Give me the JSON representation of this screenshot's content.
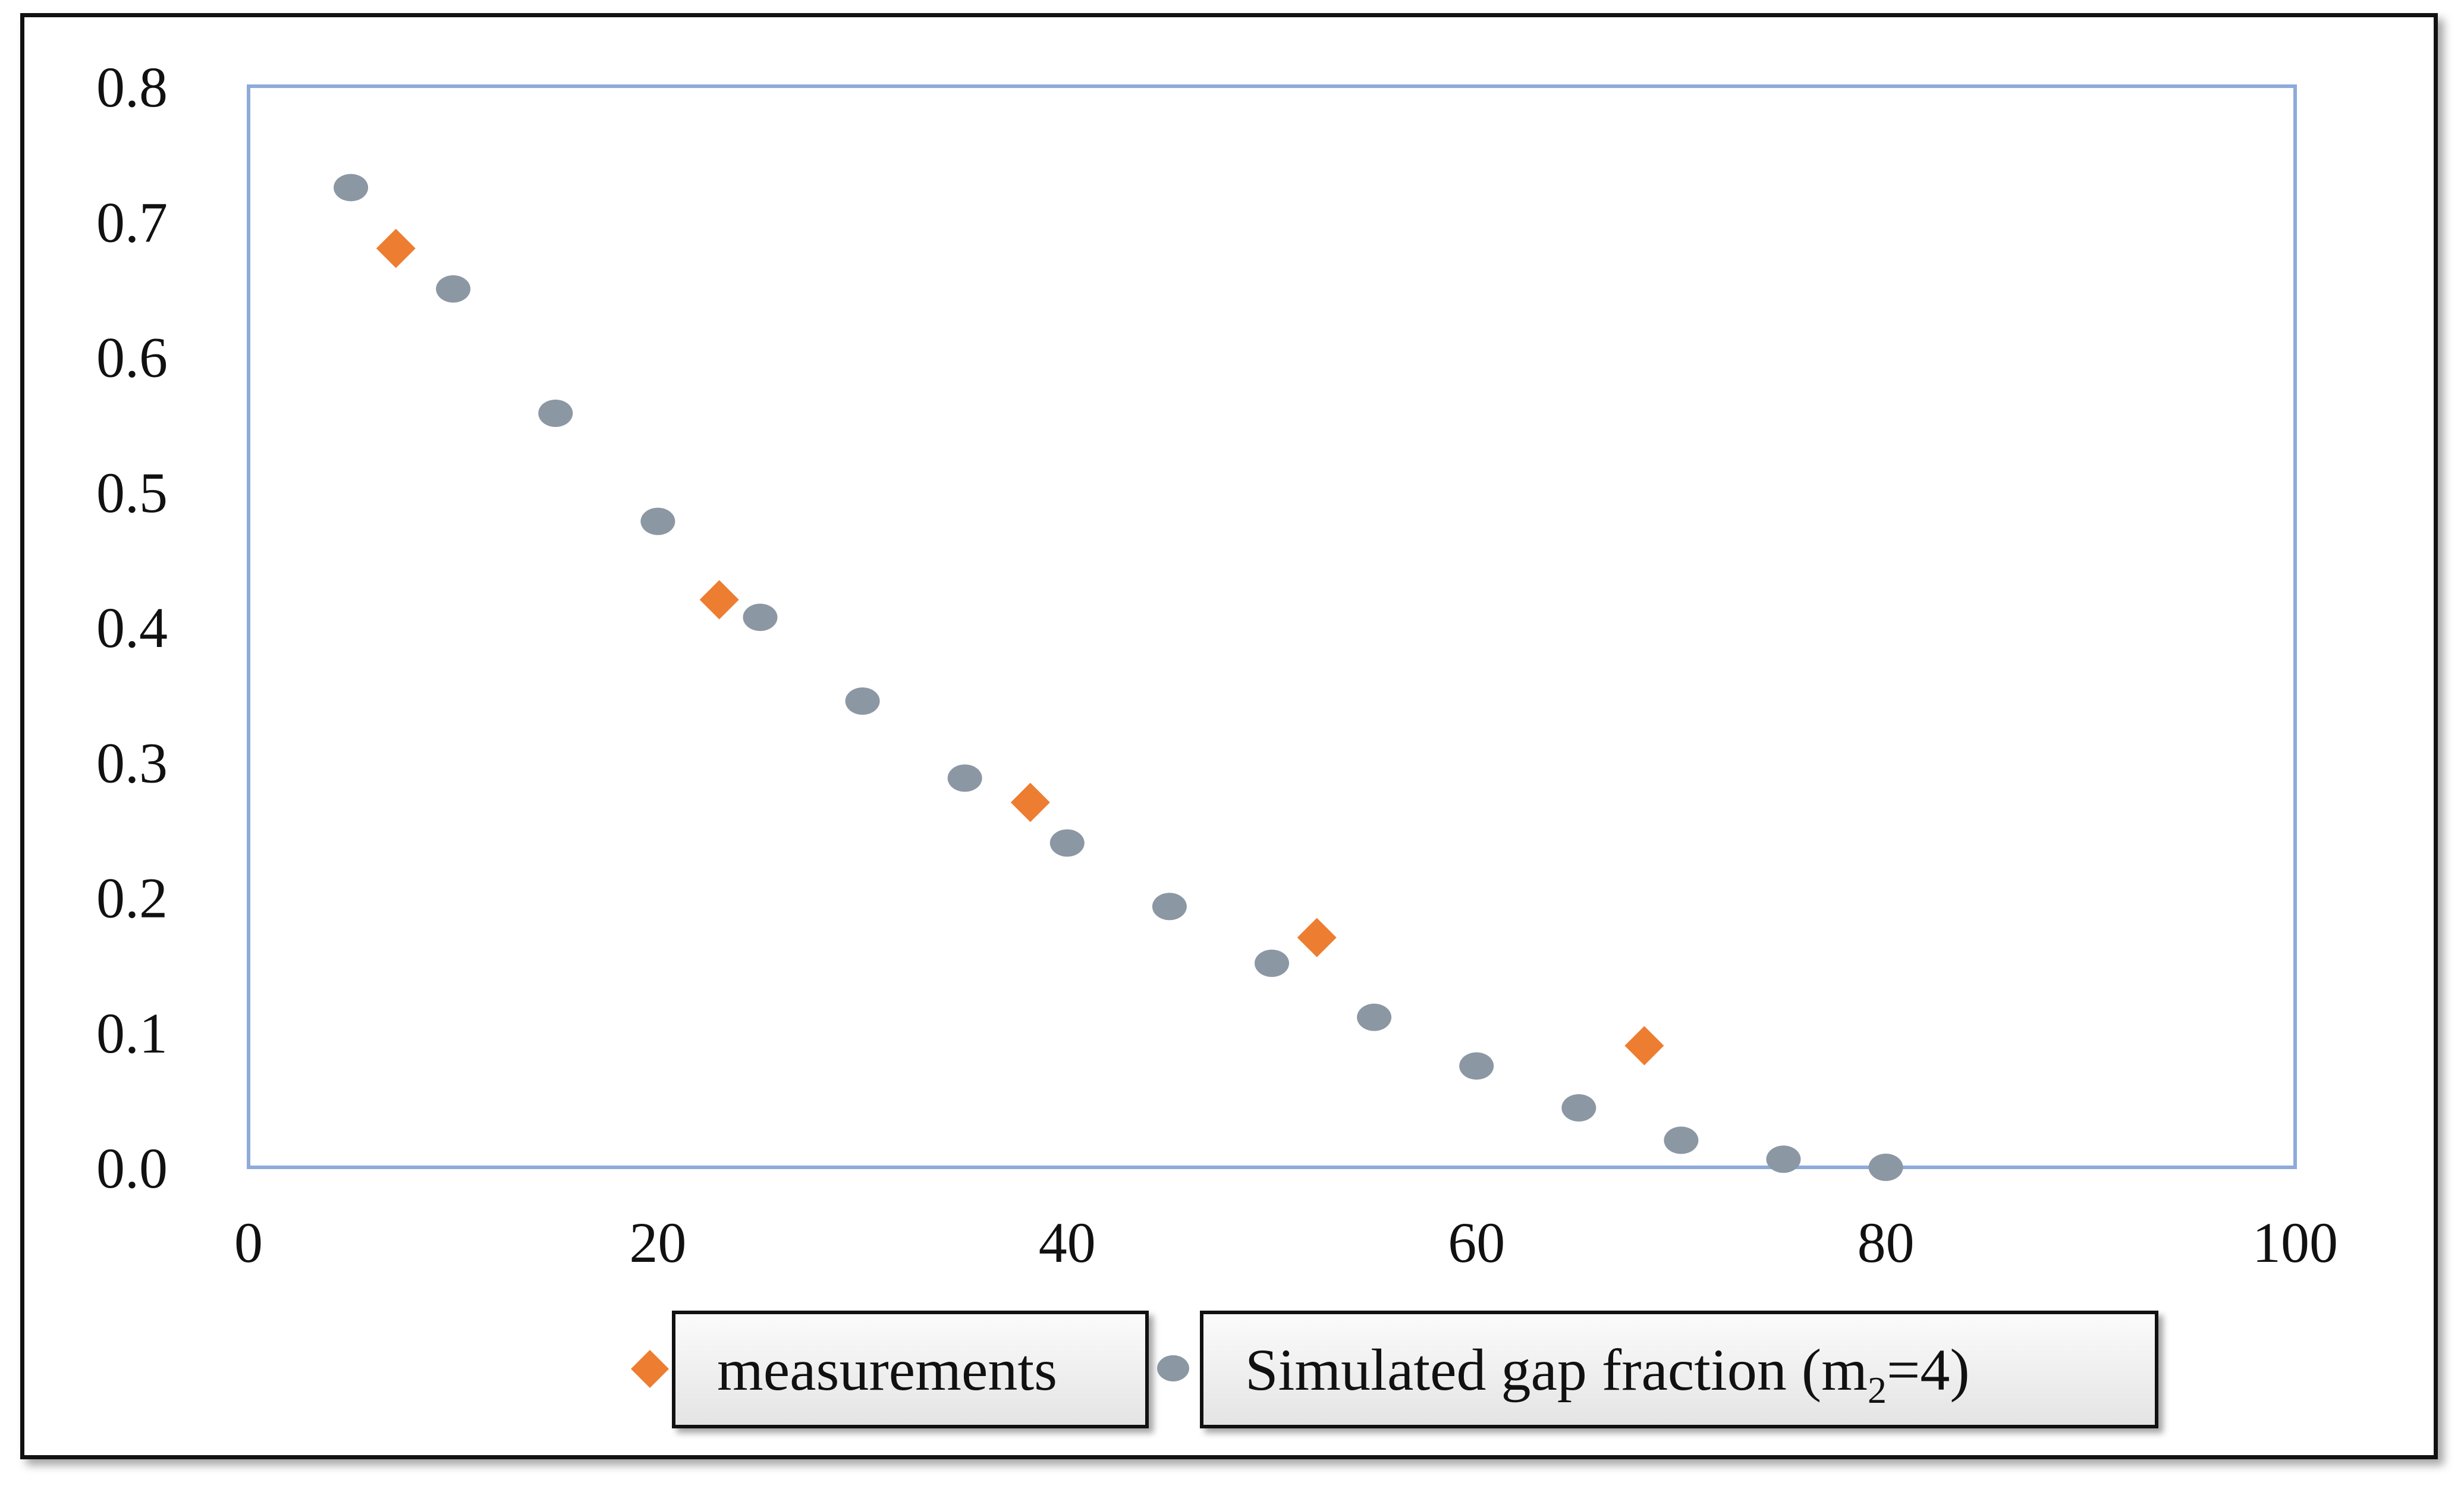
{
  "chart_data": {
    "type": "scatter",
    "title": "",
    "xlabel": "",
    "ylabel": "",
    "xlim": [
      0,
      100
    ],
    "ylim": [
      0.0,
      0.8
    ],
    "x_ticks": [
      "0",
      "20",
      "40",
      "60",
      "80",
      "100"
    ],
    "y_ticks": [
      "0.0",
      "0.1",
      "0.2",
      "0.3",
      "0.4",
      "0.5",
      "0.6",
      "0.7",
      "0.8"
    ],
    "grid": false,
    "legend_position": "bottom",
    "plot_border_color": "#8eaadb",
    "series": [
      {
        "name": "measurements",
        "marker": "diamond",
        "color": "#ed7d31",
        "points": [
          {
            "x": 7.2,
            "y": 0.68
          },
          {
            "x": 23,
            "y": 0.42
          },
          {
            "x": 38.2,
            "y": 0.27
          },
          {
            "x": 52.2,
            "y": 0.17
          },
          {
            "x": 68.2,
            "y": 0.09
          }
        ]
      },
      {
        "name": "Simulated gap fraction (m2=4)",
        "marker": "circle",
        "color": "#8c97a4",
        "points": [
          {
            "x": 5,
            "y": 0.725
          },
          {
            "x": 10,
            "y": 0.65
          },
          {
            "x": 15,
            "y": 0.558
          },
          {
            "x": 20,
            "y": 0.478
          },
          {
            "x": 25,
            "y": 0.407
          },
          {
            "x": 30,
            "y": 0.345
          },
          {
            "x": 35,
            "y": 0.288
          },
          {
            "x": 40,
            "y": 0.24
          },
          {
            "x": 45,
            "y": 0.193
          },
          {
            "x": 50,
            "y": 0.151
          },
          {
            "x": 55,
            "y": 0.111
          },
          {
            "x": 60,
            "y": 0.075
          },
          {
            "x": 65,
            "y": 0.044
          },
          {
            "x": 70,
            "y": 0.02
          },
          {
            "x": 75,
            "y": 0.006
          },
          {
            "x": 80,
            "y": 0.0
          }
        ]
      }
    ]
  },
  "legend": {
    "measurements_label": "measurements",
    "simulated_label_prefix": "Simulated gap fraction (m",
    "simulated_label_subscript": "2",
    "simulated_label_suffix": "=4)"
  }
}
